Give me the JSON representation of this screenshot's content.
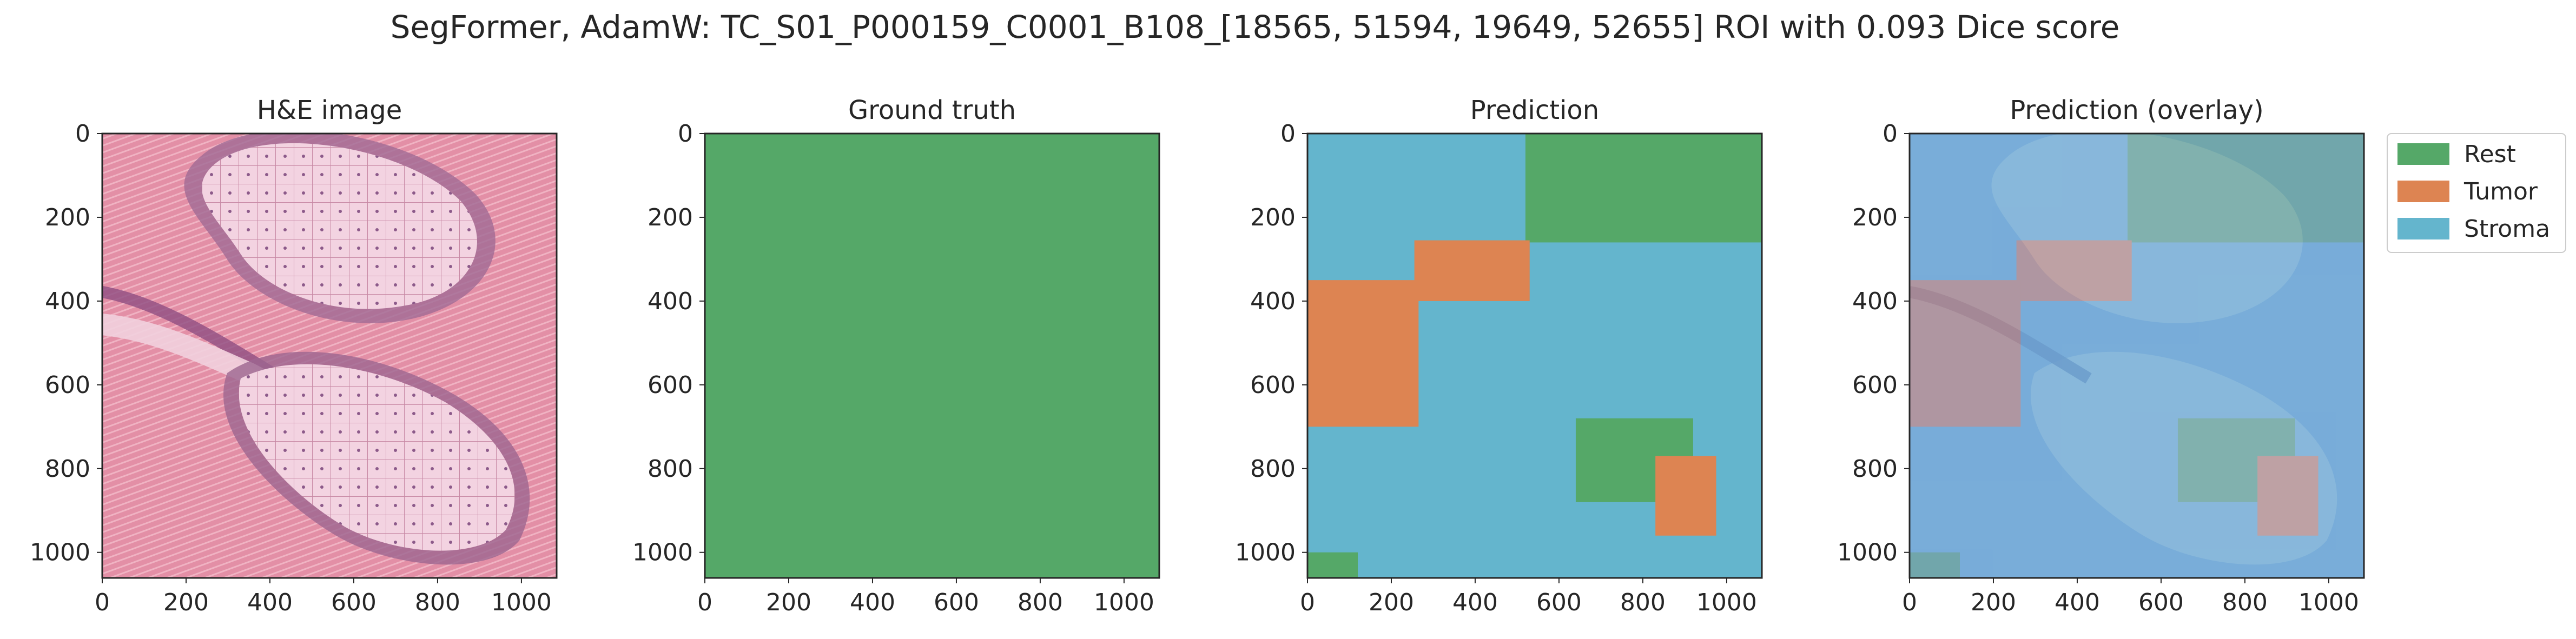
{
  "figure": {
    "title": "SegFormer, AdamW: TC_S01_P000159_C0001_B108_[18565, 51594, 19649, 52655] ROI with 0.093 Dice score"
  },
  "colors": {
    "rest": "#55a868",
    "tumor": "#dd8452",
    "stroma": "#64b5cd",
    "he_pink": "#e79aad",
    "he_light": "#f5d7e4",
    "he_nuclei": "#6b3f6e",
    "overlay_blue": "#8aa6e3"
  },
  "legend": {
    "placement": "outside right",
    "items": [
      {
        "label": "Rest",
        "color": "#55a868"
      },
      {
        "label": "Tumor",
        "color": "#dd8452"
      },
      {
        "label": "Stroma",
        "color": "#64b5cd"
      }
    ]
  },
  "chart_data": [
    {
      "type": "image",
      "title": "H&E image",
      "xlim": [
        0,
        1084
      ],
      "ylim": [
        1061,
        0
      ],
      "xticks": [
        0,
        200,
        400,
        600,
        800,
        1000
      ],
      "yticks": [
        0,
        200,
        400,
        600,
        800,
        1000
      ]
    },
    {
      "type": "heatmap",
      "title": "Ground truth",
      "xlim": [
        0,
        1084
      ],
      "ylim": [
        1061,
        0
      ],
      "xticks": [
        0,
        200,
        400,
        600,
        800,
        1000
      ],
      "yticks": [
        0,
        200,
        400,
        600,
        800,
        1000
      ],
      "classes_present": [
        "Rest"
      ],
      "regions": [
        {
          "class": "Rest",
          "x": [
            0,
            1084
          ],
          "y": [
            0,
            1061
          ]
        }
      ]
    },
    {
      "type": "heatmap",
      "title": "Prediction",
      "xlim": [
        0,
        1084
      ],
      "ylim": [
        1061,
        0
      ],
      "xticks": [
        0,
        200,
        400,
        600,
        800,
        1000
      ],
      "yticks": [
        0,
        200,
        400,
        600,
        800,
        1000
      ],
      "classes_present": [
        "Rest",
        "Tumor",
        "Stroma"
      ],
      "regions": [
        {
          "class": "Stroma",
          "x": [
            0,
            1084
          ],
          "y": [
            0,
            1061
          ]
        },
        {
          "class": "Rest",
          "x": [
            520,
            1084
          ],
          "y": [
            0,
            260
          ]
        },
        {
          "class": "Tumor",
          "x": [
            255,
            530
          ],
          "y": [
            255,
            400
          ]
        },
        {
          "class": "Tumor",
          "x": [
            0,
            265
          ],
          "y": [
            350,
            700
          ]
        },
        {
          "class": "Rest",
          "x": [
            640,
            920
          ],
          "y": [
            680,
            880
          ]
        },
        {
          "class": "Tumor",
          "x": [
            830,
            975
          ],
          "y": [
            770,
            960
          ]
        },
        {
          "class": "Rest",
          "x": [
            0,
            120
          ],
          "y": [
            1000,
            1061
          ]
        }
      ]
    },
    {
      "type": "image",
      "title": "Prediction (overlay)",
      "xlim": [
        0,
        1084
      ],
      "ylim": [
        1061,
        0
      ],
      "xticks": [
        0,
        200,
        400,
        600,
        800,
        1000
      ],
      "yticks": [
        0,
        200,
        400,
        600,
        800,
        1000
      ]
    }
  ]
}
